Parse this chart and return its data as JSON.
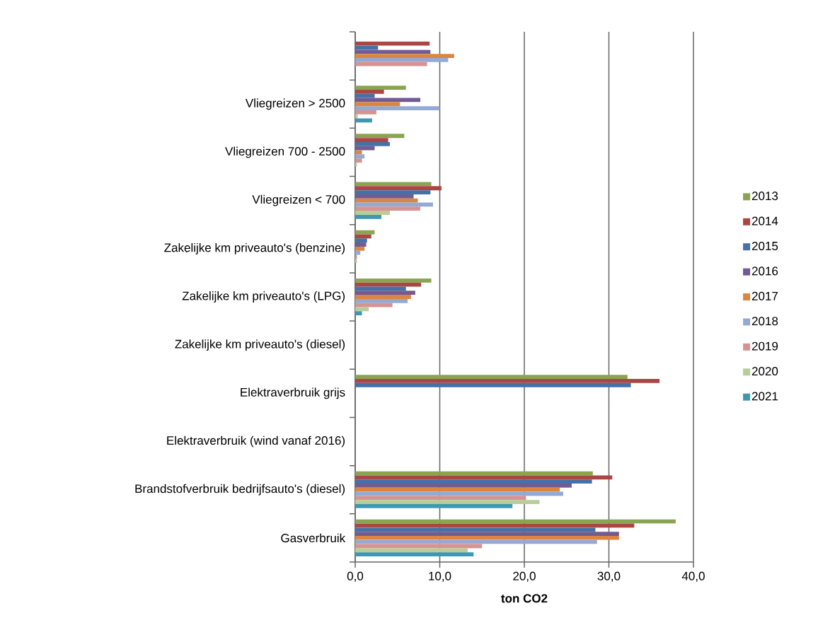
{
  "chart_data": {
    "type": "bar",
    "orientation": "horizontal",
    "xlabel": "ton CO2",
    "categories": [
      null,
      "Vliegreizen > 2500",
      "Vliegreizen 700 - 2500",
      "Vliegreizen < 700",
      "Zakelijke km priveauto's (benzine)",
      "Zakelijke km priveauto's (LPG)",
      "Zakelijke km priveauto's (diesel)",
      "Elektraverbruik grijs",
      "Elektraverbruik (wind vanaf 2016)",
      "Brandstofverbruik bedrijfsauto's (diesel)",
      "Gasverbruik"
    ],
    "series": [
      {
        "name": "2013",
        "color": "#8ba44f",
        "values": [
          null,
          6.0,
          5.8,
          9.0,
          2.3,
          9.0,
          null,
          32.2,
          null,
          28.1,
          37.9
        ]
      },
      {
        "name": "2014",
        "color": "#ab4644",
        "values": [
          8.8,
          3.4,
          3.9,
          10.2,
          1.9,
          7.8,
          null,
          36.0,
          null,
          30.4,
          33.0
        ]
      },
      {
        "name": "2015",
        "color": "#4471a7",
        "values": [
          2.7,
          2.3,
          4.1,
          8.9,
          1.4,
          6.0,
          null,
          32.6,
          null,
          28.0,
          28.4
        ]
      },
      {
        "name": "2016",
        "color": "#735a91",
        "values": [
          8.9,
          7.7,
          2.3,
          6.9,
          1.3,
          7.1,
          null,
          null,
          null,
          25.6,
          31.2
        ]
      },
      {
        "name": "2017",
        "color": "#db8640",
        "values": [
          11.7,
          5.3,
          0.8,
          7.4,
          1.1,
          6.6,
          null,
          null,
          null,
          24.2,
          31.2
        ]
      },
      {
        "name": "2018",
        "color": "#94aad3",
        "values": [
          11.0,
          10.0,
          1.1,
          9.2,
          0.6,
          6.2,
          null,
          null,
          null,
          24.6,
          28.6
        ]
      },
      {
        "name": "2019",
        "color": "#d59392",
        "values": [
          8.5,
          2.5,
          0.8,
          7.7,
          0.2,
          4.4,
          null,
          null,
          null,
          20.2,
          15.0
        ]
      },
      {
        "name": "2020",
        "color": "#b9cd98",
        "values": [
          null,
          0.3,
          0.2,
          4.1,
          0.2,
          1.6,
          null,
          null,
          null,
          21.8,
          13.3
        ]
      },
      {
        "name": "2021",
        "color": "#3f98b1",
        "values": [
          null,
          2.0,
          null,
          3.1,
          null,
          0.8,
          null,
          null,
          null,
          18.6,
          14.0
        ]
      }
    ],
    "xlim": [
      0,
      40
    ],
    "xticks": [
      {
        "value": 0,
        "label": "0,0"
      },
      {
        "value": 10,
        "label": "10,0"
      },
      {
        "value": 20,
        "label": "20,0"
      },
      {
        "value": 30,
        "label": "30,0"
      },
      {
        "value": 40,
        "label": "40,0"
      }
    ],
    "grid": "x",
    "legend": "right"
  }
}
